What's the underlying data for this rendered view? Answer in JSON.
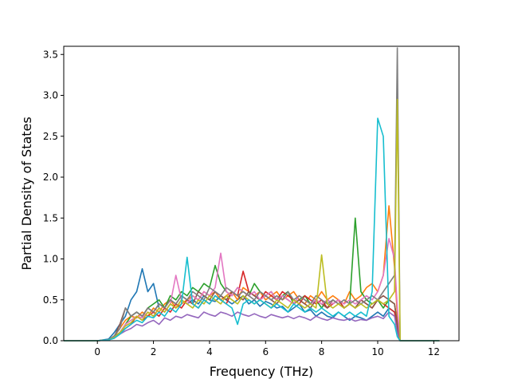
{
  "chart_data": {
    "type": "line",
    "title": "",
    "xlabel": "Frequency (THz)",
    "ylabel": "Partial Density of States",
    "xlim": [
      -1.2,
      12.9
    ],
    "ylim": [
      0,
      3.6
    ],
    "xticks": [
      0,
      2,
      4,
      6,
      8,
      10,
      12
    ],
    "yticks": [
      0.0,
      0.5,
      1.0,
      1.5,
      2.0,
      2.5,
      3.0,
      3.5
    ],
    "xtick_labels": [
      "0",
      "2",
      "4",
      "6",
      "8",
      "10",
      "12"
    ],
    "ytick_labels": [
      "0.0",
      "0.5",
      "1.0",
      "1.5",
      "2.0",
      "2.5",
      "3.0",
      "3.5"
    ],
    "grid": false,
    "legend": "none",
    "x": [
      -1.2,
      -0.8,
      -0.4,
      0.0,
      0.4,
      0.6,
      0.8,
      1.0,
      1.2,
      1.4,
      1.6,
      1.8,
      2.0,
      2.2,
      2.4,
      2.6,
      2.8,
      3.0,
      3.2,
      3.4,
      3.6,
      3.8,
      4.0,
      4.2,
      4.4,
      4.6,
      4.8,
      5.0,
      5.2,
      5.4,
      5.6,
      5.8,
      6.0,
      6.2,
      6.4,
      6.6,
      6.8,
      7.0,
      7.2,
      7.4,
      7.6,
      7.8,
      8.0,
      8.2,
      8.4,
      8.6,
      8.8,
      9.0,
      9.2,
      9.4,
      9.6,
      9.8,
      10.0,
      10.2,
      10.4,
      10.6,
      10.7,
      10.8,
      11.0,
      11.5,
      12.2
    ],
    "series": [
      {
        "color": "#1f77b4",
        "values": [
          0,
          0,
          0,
          0,
          0.02,
          0.1,
          0.2,
          0.3,
          0.5,
          0.6,
          0.88,
          0.6,
          0.7,
          0.4,
          0.35,
          0.45,
          0.4,
          0.5,
          0.45,
          0.5,
          0.45,
          0.55,
          0.5,
          0.48,
          0.55,
          0.5,
          0.45,
          0.5,
          0.55,
          0.45,
          0.5,
          0.42,
          0.48,
          0.45,
          0.4,
          0.42,
          0.35,
          0.4,
          0.45,
          0.35,
          0.38,
          0.3,
          0.35,
          0.3,
          0.28,
          0.35,
          0.3,
          0.25,
          0.3,
          0.28,
          0.25,
          0.3,
          0.35,
          0.3,
          0.4,
          0.35,
          0.2,
          0,
          0,
          0,
          0
        ]
      },
      {
        "color": "#ff7f0e",
        "values": [
          0,
          0,
          0,
          0,
          0.01,
          0.05,
          0.15,
          0.25,
          0.3,
          0.28,
          0.35,
          0.3,
          0.4,
          0.35,
          0.45,
          0.5,
          0.4,
          0.45,
          0.5,
          0.55,
          0.5,
          0.6,
          0.55,
          0.6,
          0.5,
          0.55,
          0.6,
          0.5,
          0.65,
          0.6,
          0.55,
          0.6,
          0.5,
          0.55,
          0.6,
          0.5,
          0.55,
          0.6,
          0.5,
          0.45,
          0.55,
          0.5,
          0.6,
          0.5,
          0.55,
          0.5,
          0.45,
          0.6,
          0.5,
          0.55,
          0.65,
          0.7,
          0.6,
          0.8,
          1.65,
          0.9,
          0.3,
          0,
          0,
          0,
          0
        ]
      },
      {
        "color": "#2ca02c",
        "values": [
          0,
          0,
          0,
          0,
          0.01,
          0.05,
          0.1,
          0.2,
          0.3,
          0.35,
          0.3,
          0.4,
          0.45,
          0.5,
          0.4,
          0.55,
          0.5,
          0.6,
          0.55,
          0.65,
          0.6,
          0.7,
          0.65,
          0.92,
          0.7,
          0.6,
          0.55,
          0.65,
          0.6,
          0.55,
          0.7,
          0.6,
          0.55,
          0.6,
          0.5,
          0.55,
          0.6,
          0.45,
          0.5,
          0.55,
          0.45,
          0.5,
          0.4,
          0.5,
          0.45,
          0.5,
          0.4,
          0.45,
          1.5,
          0.6,
          0.5,
          0.45,
          0.5,
          0.4,
          0.5,
          0.45,
          0.2,
          0,
          0,
          0,
          0
        ]
      },
      {
        "color": "#d62728",
        "values": [
          0,
          0,
          0,
          0,
          0.01,
          0.04,
          0.1,
          0.15,
          0.2,
          0.3,
          0.25,
          0.3,
          0.35,
          0.3,
          0.4,
          0.35,
          0.45,
          0.4,
          0.5,
          0.45,
          0.4,
          0.5,
          0.45,
          0.55,
          0.5,
          0.45,
          0.6,
          0.55,
          0.85,
          0.6,
          0.55,
          0.5,
          0.6,
          0.55,
          0.5,
          0.6,
          0.55,
          0.5,
          0.45,
          0.55,
          0.5,
          0.45,
          0.5,
          0.4,
          0.45,
          0.5,
          0.4,
          0.45,
          0.4,
          0.5,
          0.45,
          0.4,
          0.5,
          0.45,
          0.4,
          0.35,
          0.15,
          0,
          0,
          0,
          0
        ]
      },
      {
        "color": "#9467bd",
        "values": [
          0,
          0,
          0,
          0,
          0.01,
          0.03,
          0.08,
          0.12,
          0.15,
          0.2,
          0.18,
          0.22,
          0.25,
          0.2,
          0.28,
          0.25,
          0.3,
          0.28,
          0.32,
          0.3,
          0.28,
          0.35,
          0.32,
          0.3,
          0.35,
          0.33,
          0.3,
          0.35,
          0.32,
          0.3,
          0.33,
          0.3,
          0.28,
          0.32,
          0.3,
          0.28,
          0.3,
          0.27,
          0.3,
          0.28,
          0.25,
          0.3,
          0.27,
          0.25,
          0.28,
          0.26,
          0.25,
          0.27,
          0.24,
          0.26,
          0.25,
          0.28,
          0.3,
          0.27,
          0.35,
          0.3,
          0.1,
          0,
          0,
          0,
          0
        ]
      },
      {
        "color": "#8c564b",
        "values": [
          0,
          0,
          0,
          0,
          0.01,
          0.05,
          0.2,
          0.4,
          0.3,
          0.35,
          0.3,
          0.4,
          0.35,
          0.45,
          0.4,
          0.5,
          0.45,
          0.55,
          0.5,
          0.45,
          0.6,
          0.55,
          0.5,
          0.6,
          0.55,
          0.5,
          0.6,
          0.55,
          0.5,
          0.6,
          0.55,
          0.5,
          0.55,
          0.5,
          0.45,
          0.55,
          0.5,
          0.45,
          0.5,
          0.45,
          0.4,
          0.5,
          0.45,
          0.4,
          0.5,
          0.45,
          0.4,
          0.45,
          0.4,
          0.5,
          0.45,
          0.4,
          0.5,
          0.55,
          0.5,
          0.45,
          0.2,
          0,
          0,
          0,
          0
        ]
      },
      {
        "color": "#e377c2",
        "values": [
          0,
          0,
          0,
          0,
          0.01,
          0.04,
          0.1,
          0.2,
          0.25,
          0.3,
          0.28,
          0.35,
          0.3,
          0.4,
          0.35,
          0.45,
          0.8,
          0.5,
          0.45,
          0.55,
          0.5,
          0.6,
          0.55,
          0.65,
          1.07,
          0.6,
          0.55,
          0.65,
          0.6,
          0.55,
          0.6,
          0.5,
          0.55,
          0.6,
          0.5,
          0.55,
          0.5,
          0.45,
          0.55,
          0.5,
          0.45,
          0.5,
          0.45,
          0.5,
          0.45,
          0.5,
          0.45,
          0.5,
          0.45,
          0.5,
          0.55,
          0.5,
          0.6,
          0.8,
          1.25,
          1.0,
          0.4,
          0,
          0,
          0,
          0
        ]
      },
      {
        "color": "#7f7f7f",
        "values": [
          0,
          0,
          0,
          0,
          0.01,
          0.06,
          0.15,
          0.4,
          0.3,
          0.35,
          0.3,
          0.4,
          0.35,
          0.45,
          0.4,
          0.5,
          0.45,
          0.55,
          0.5,
          0.6,
          0.55,
          0.5,
          0.65,
          0.6,
          0.55,
          0.65,
          0.6,
          0.55,
          0.6,
          0.55,
          0.5,
          0.6,
          0.55,
          0.5,
          0.55,
          0.5,
          0.6,
          0.5,
          0.55,
          0.5,
          0.45,
          0.55,
          0.5,
          0.45,
          0.5,
          0.45,
          0.5,
          0.45,
          0.5,
          0.45,
          0.5,
          0.55,
          0.5,
          0.6,
          0.7,
          0.8,
          3.58,
          0,
          0,
          0,
          0
        ]
      },
      {
        "color": "#bcbd22",
        "values": [
          0,
          0,
          0,
          0,
          0.01,
          0.04,
          0.1,
          0.18,
          0.22,
          0.3,
          0.25,
          0.35,
          0.3,
          0.4,
          0.35,
          0.45,
          0.4,
          0.5,
          0.45,
          0.4,
          0.5,
          0.45,
          0.55,
          0.5,
          0.45,
          0.55,
          0.5,
          0.45,
          0.55,
          0.5,
          0.45,
          0.5,
          0.45,
          0.4,
          0.5,
          0.45,
          0.4,
          0.5,
          0.45,
          0.4,
          0.45,
          0.4,
          1.05,
          0.45,
          0.4,
          0.45,
          0.4,
          0.45,
          0.4,
          0.45,
          0.4,
          0.45,
          0.5,
          0.45,
          0.5,
          0.6,
          2.95,
          0,
          0,
          0,
          0
        ]
      },
      {
        "color": "#17becf",
        "values": [
          0,
          0,
          0,
          0,
          0.01,
          0.03,
          0.08,
          0.15,
          0.2,
          0.25,
          0.22,
          0.3,
          0.28,
          0.35,
          0.3,
          0.4,
          0.35,
          0.45,
          1.02,
          0.45,
          0.4,
          0.5,
          0.45,
          0.55,
          0.5,
          0.45,
          0.4,
          0.2,
          0.45,
          0.5,
          0.45,
          0.5,
          0.45,
          0.4,
          0.45,
          0.4,
          0.35,
          0.45,
          0.4,
          0.35,
          0.4,
          0.35,
          0.4,
          0.35,
          0.3,
          0.35,
          0.3,
          0.35,
          0.3,
          0.35,
          0.3,
          0.6,
          2.72,
          2.5,
          0.3,
          0.2,
          0.05,
          0,
          0,
          0,
          0
        ]
      }
    ]
  }
}
